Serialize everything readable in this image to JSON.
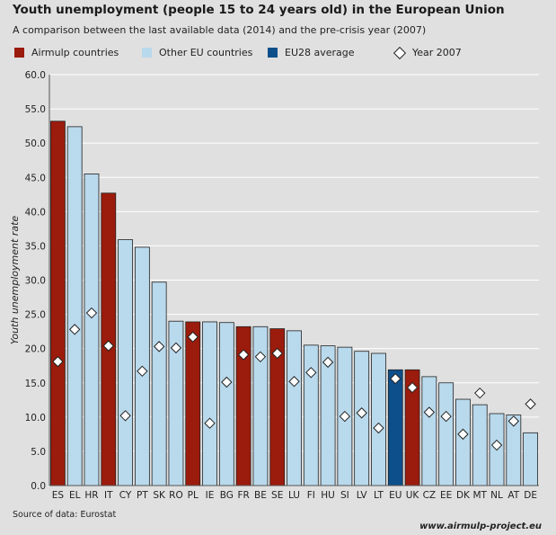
{
  "title": "Youth unemployment (people 15 to 24 years old) in the European Union",
  "subtitle": "A comparison between the last available data (2014) and the pre-crisis year (2007)",
  "legend": [
    {
      "label": "Airmulp countries",
      "color": "#9b1b0c",
      "kind": "square"
    },
    {
      "label": "Other EU countries",
      "color": "#b9d9ec",
      "kind": "square"
    },
    {
      "label": "EU28 average",
      "color": "#0d4f8b",
      "kind": "square"
    },
    {
      "label": "Year 2007",
      "color": "#ffffff",
      "kind": "diamond"
    }
  ],
  "source": "Source of data: Eurostat",
  "website": "www.airmulp-project.eu",
  "colors": {
    "airmulp": "#9b1b0c",
    "other": "#b9d9ec",
    "eu": "#0d4f8b",
    "background": "#e0e0e0",
    "grid": "#ffffff"
  },
  "chart_data": {
    "type": "bar",
    "title": "Youth unemployment (people 15 to 24 years old) in the European Union",
    "ylabel": "Youth unemployment rate",
    "xlabel": "",
    "ylim": [
      0,
      60
    ],
    "yticks": [
      "0.0",
      "5.0",
      "10.0",
      "15.0",
      "20.0",
      "25.0",
      "30.0",
      "35.0",
      "40.0",
      "45.0",
      "50.0",
      "55.0",
      "60.0"
    ],
    "grid": true,
    "legend_position": "top",
    "categories": [
      "ES",
      "EL",
      "HR",
      "IT",
      "CY",
      "PT",
      "SK",
      "RO",
      "PL",
      "IE",
      "BG",
      "FR",
      "BE",
      "SE",
      "LU",
      "FI",
      "HU",
      "SI",
      "LV",
      "LT",
      "EU",
      "UK",
      "CZ",
      "EE",
      "DK",
      "MT",
      "NL",
      "AT",
      "DE"
    ],
    "groups": [
      "airmulp",
      "other",
      "other",
      "airmulp",
      "other",
      "other",
      "other",
      "other",
      "airmulp",
      "other",
      "other",
      "airmulp",
      "other",
      "airmulp",
      "other",
      "other",
      "other",
      "other",
      "other",
      "other",
      "eu",
      "airmulp",
      "other",
      "other",
      "other",
      "other",
      "other",
      "other",
      "other"
    ],
    "series": [
      {
        "name": "2014",
        "values": [
          53.2,
          52.4,
          45.5,
          42.7,
          35.9,
          34.8,
          29.7,
          24.0,
          23.9,
          23.9,
          23.8,
          23.2,
          23.2,
          22.9,
          22.6,
          20.5,
          20.4,
          20.2,
          19.6,
          19.3,
          16.9,
          16.9,
          15.9,
          15.0,
          12.6,
          11.8,
          10.5,
          10.3,
          7.7
        ]
      },
      {
        "name": "Year 2007",
        "values": [
          18.1,
          22.8,
          25.2,
          20.4,
          10.2,
          16.7,
          20.3,
          20.1,
          21.7,
          9.1,
          15.1,
          19.1,
          18.8,
          19.3,
          15.2,
          16.5,
          18.0,
          10.1,
          10.6,
          8.4,
          15.6,
          14.3,
          10.7,
          10.1,
          7.5,
          13.5,
          5.9,
          9.4,
          11.9
        ]
      }
    ]
  }
}
